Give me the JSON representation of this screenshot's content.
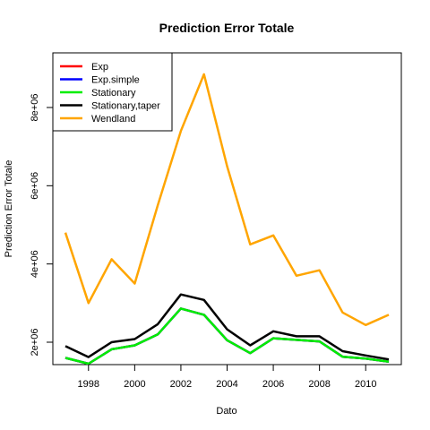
{
  "chart_data": {
    "type": "line",
    "title": "Prediction Error Totale",
    "xlabel": "Dato",
    "ylabel": "Prediction Error Totale",
    "xlim": [
      1997,
      2011
    ],
    "ylim": [
      1000000,
      9000000
    ],
    "x": [
      1997,
      1998,
      1999,
      2000,
      2001,
      2002,
      2003,
      2004,
      2005,
      2006,
      2007,
      2008,
      2009,
      2010,
      2011
    ],
    "x_ticks": [
      1998,
      2000,
      2002,
      2004,
      2006,
      2008,
      2010
    ],
    "x_tick_labels": [
      "1998",
      "2000",
      "2002",
      "2004",
      "2006",
      "2008",
      "2010"
    ],
    "y_ticks": [
      2000000,
      4000000,
      6000000,
      8000000
    ],
    "y_tick_labels": [
      "2e+06",
      "4e+06",
      "6e+06",
      "8e+06"
    ],
    "legend_position": "top-left",
    "grid": false,
    "series": [
      {
        "name": "Exp",
        "color": "#ff0000",
        "values": [
          1600000,
          1450000,
          1820000,
          1920000,
          2200000,
          2860000,
          2700000,
          2050000,
          1720000,
          2100000,
          2060000,
          2020000,
          1630000,
          1580000,
          1500000
        ]
      },
      {
        "name": "Exp.simple",
        "color": "#0000ff",
        "values": [
          1600000,
          1450000,
          1820000,
          1920000,
          2200000,
          2860000,
          2700000,
          2050000,
          1720000,
          2100000,
          2060000,
          2020000,
          1630000,
          1580000,
          1500000
        ]
      },
      {
        "name": "Stationary",
        "color": "#00ee00",
        "values": [
          1600000,
          1450000,
          1820000,
          1920000,
          2200000,
          2860000,
          2700000,
          2050000,
          1720000,
          2100000,
          2060000,
          2020000,
          1630000,
          1580000,
          1500000
        ]
      },
      {
        "name": "Stationary,taper",
        "color": "#000000",
        "values": [
          1900000,
          1620000,
          2000000,
          2080000,
          2460000,
          3220000,
          3080000,
          2330000,
          1920000,
          2280000,
          2150000,
          2150000,
          1770000,
          1660000,
          1560000
        ]
      },
      {
        "name": "Wendland",
        "color": "#ffa500",
        "values": [
          4800000,
          3000000,
          4120000,
          3500000,
          5500000,
          7400000,
          8850000,
          6500000,
          4500000,
          4730000,
          3700000,
          3840000,
          2760000,
          2440000,
          2700000
        ]
      }
    ]
  }
}
